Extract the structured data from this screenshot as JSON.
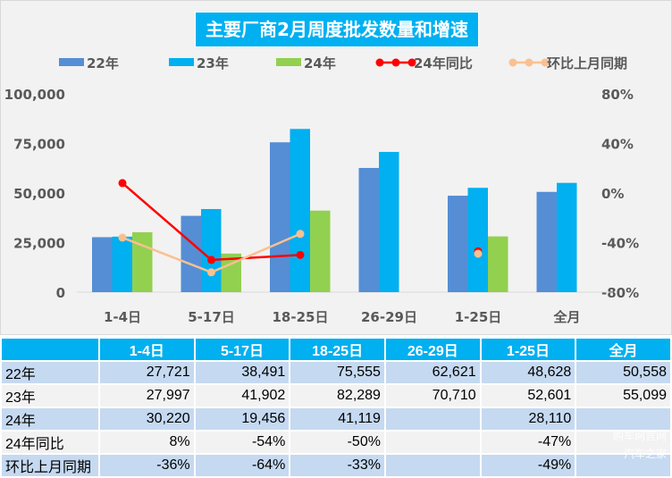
{
  "chart_data": {
    "type": "bar+line",
    "title": "主要厂商2月周度批发数量和增速",
    "categories": [
      "1-4日",
      "5-17日",
      "18-25日",
      "26-29日",
      "1-25日",
      "全月"
    ],
    "left_axis": {
      "range": [
        0,
        100000
      ],
      "ticks": [
        "0",
        "25,000",
        "50,000",
        "75,000",
        "100,000"
      ]
    },
    "right_axis": {
      "range": [
        -0.8,
        0.8
      ],
      "ticks": [
        "-80%",
        "-40%",
        "0%",
        "40%",
        "80%"
      ]
    },
    "legend_position": "top",
    "series": [
      {
        "name": "22年",
        "type": "bar",
        "color": "#558ed5",
        "values": [
          27721,
          38491,
          75555,
          62621,
          48628,
          50558
        ]
      },
      {
        "name": "23年",
        "type": "bar",
        "color": "#00b0f0",
        "values": [
          27997,
          41902,
          82289,
          70710,
          52601,
          55099
        ]
      },
      {
        "name": "24年",
        "type": "bar",
        "color": "#92d050",
        "values": [
          30220,
          19456,
          41119,
          null,
          28110,
          null
        ]
      },
      {
        "name": "24年同比",
        "type": "line",
        "axis": "right",
        "color": "#ff0000",
        "values": [
          0.08,
          -0.54,
          -0.5,
          null,
          -0.47,
          null
        ]
      },
      {
        "name": "环比上月同期",
        "type": "line",
        "axis": "right",
        "color": "#fac090",
        "values": [
          -0.36,
          -0.64,
          -0.33,
          null,
          -0.49,
          null
        ]
      }
    ]
  },
  "table": {
    "header": [
      "",
      "1-4日",
      "5-17日",
      "18-25日",
      "26-29日",
      "1-25日",
      "全月"
    ],
    "rows": [
      [
        "22年",
        "27,721",
        "38,491",
        "75,555",
        "62,621",
        "48,628",
        "50,558"
      ],
      [
        "23年",
        "27,997",
        "41,902",
        "82,289",
        "70,710",
        "52,601",
        "55,099"
      ],
      [
        "24年",
        "30,220",
        "19,456",
        "41,119",
        "",
        "28,110",
        ""
      ],
      [
        "24年同比",
        "8%",
        "-54%",
        "-50%",
        "",
        "-47%",
        ""
      ],
      [
        "环比上月同期",
        "-36%",
        "-64%",
        "-33%",
        "",
        "-49%",
        ""
      ]
    ]
  },
  "watermark": [
    "购车网官网",
    "汽车之家"
  ]
}
